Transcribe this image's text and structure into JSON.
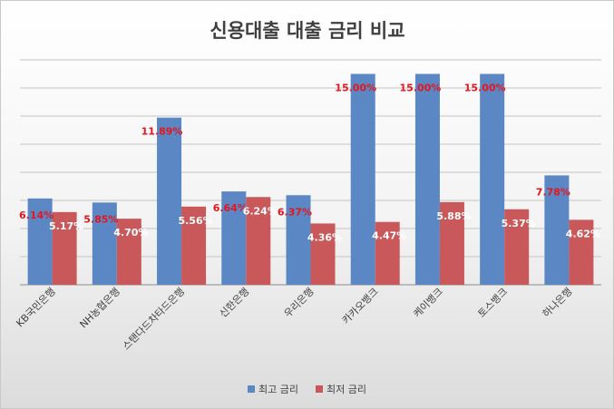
{
  "chart_data": {
    "type": "bar",
    "title": "신용대출 대출 금리 비교",
    "xlabel": "",
    "ylabel": "",
    "ylim": [
      0,
      16
    ],
    "grid": true,
    "legend_position": "bottom",
    "categories": [
      "KB국민은행",
      "NH농협은행",
      "스탠다드차타드은행",
      "신한은행",
      "우리은행",
      "카카오뱅크",
      "케이뱅크",
      "토스뱅크",
      "하나은행"
    ],
    "series": [
      {
        "name": "최고 금리",
        "color": "#5b87c5",
        "label_color": "#e6151b",
        "values": [
          6.14,
          5.85,
          11.89,
          6.64,
          6.37,
          15.0,
          15.0,
          15.0,
          7.78
        ],
        "labels": [
          "6.14%",
          "5.85%",
          "11.89%",
          "6.64%",
          "6.37%",
          "15.00%",
          "15.00%",
          "15.00%",
          "7.78%"
        ]
      },
      {
        "name": "최저 금리",
        "color": "#c9585a",
        "label_color": "#ffffff",
        "values": [
          5.17,
          4.7,
          5.56,
          6.24,
          4.36,
          4.47,
          5.88,
          5.37,
          4.62
        ],
        "labels": [
          "5.17%",
          "4.70%",
          "5.56%",
          "6.24%",
          "4.36%",
          "4.47%",
          "5.88%",
          "5.37%",
          "4.62%"
        ]
      }
    ]
  }
}
